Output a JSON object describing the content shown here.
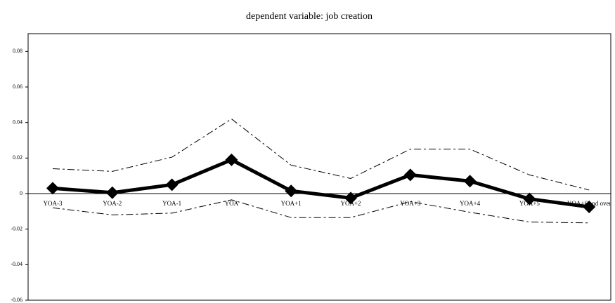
{
  "chart_data": {
    "type": "line",
    "title": "dependent variable: job creation",
    "categories": [
      "YOA-3",
      "YOA-2",
      "YOA-1",
      "YOA",
      "YOA+1",
      "YOA+2",
      "YOA+3",
      "YOA+4",
      "YOA+5",
      "YOA+6 and over"
    ],
    "series": [
      {
        "color": "#000000",
        "line_style": "solid",
        "marker": "diamond",
        "values": [
          0.003,
          0.0005,
          0.005,
          0.019,
          0.0015,
          -0.0025,
          0.0105,
          0.007,
          -0.003,
          -0.0075
        ]
      },
      {
        "color": "#000000",
        "line_style": "dashed",
        "marker": "none",
        "values": [
          0.014,
          0.0125,
          0.0205,
          0.042,
          0.016,
          0.0085,
          0.025,
          0.025,
          0.0105,
          0.002
        ]
      },
      {
        "color": "#000000",
        "line_style": "dashed",
        "marker": "none",
        "values": [
          -0.008,
          -0.012,
          -0.011,
          -0.0035,
          -0.0135,
          -0.0135,
          -0.0045,
          -0.0105,
          -0.016,
          -0.0165
        ]
      }
    ],
    "ylim": [
      -0.06,
      0.09
    ],
    "yticks": [
      -0.06,
      -0.04,
      -0.02,
      0,
      0.02,
      0.04,
      0.06,
      0.08
    ]
  }
}
